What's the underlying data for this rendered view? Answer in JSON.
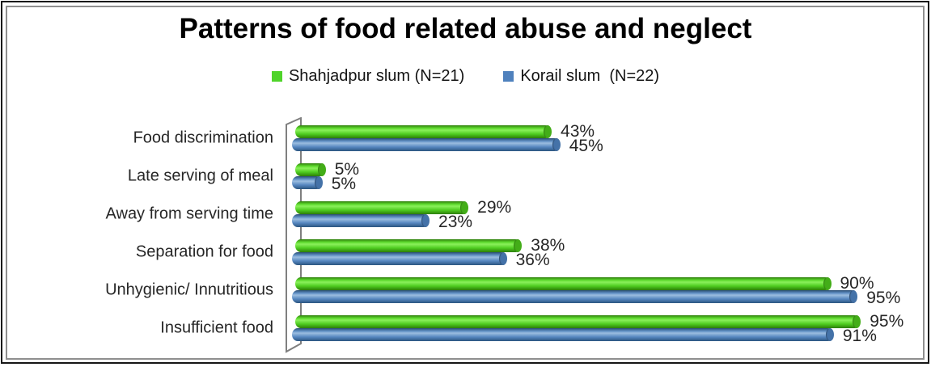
{
  "chart_data": {
    "type": "bar",
    "orientation": "horizontal",
    "style": "3d-cylinder",
    "title": "Patterns of food related abuse and neglect",
    "categories": [
      "Food discrimination",
      "Late serving of meal",
      "Away from serving time",
      "Separation for food",
      "Unhygienic/ Innutritious",
      "Insufficient food"
    ],
    "series": [
      {
        "name": "Shahjadpur slum (N=21)",
        "color": "#4fd42a",
        "values": [
          43,
          5,
          29,
          38,
          90,
          95
        ],
        "labels": [
          "43%",
          "5%",
          "29%",
          "38%",
          "90%",
          "95%"
        ]
      },
      {
        "name": "Korail slum  (N=22)",
        "color": "#4f81bd",
        "values": [
          45,
          5,
          23,
          36,
          95,
          91
        ],
        "labels": [
          "45%",
          "5%",
          "23%",
          "36%",
          "95%",
          "91%"
        ]
      }
    ],
    "xlim": [
      0,
      100
    ],
    "value_suffix": "%",
    "grid": false,
    "legend_position": "top",
    "data_labels_shown": true
  }
}
